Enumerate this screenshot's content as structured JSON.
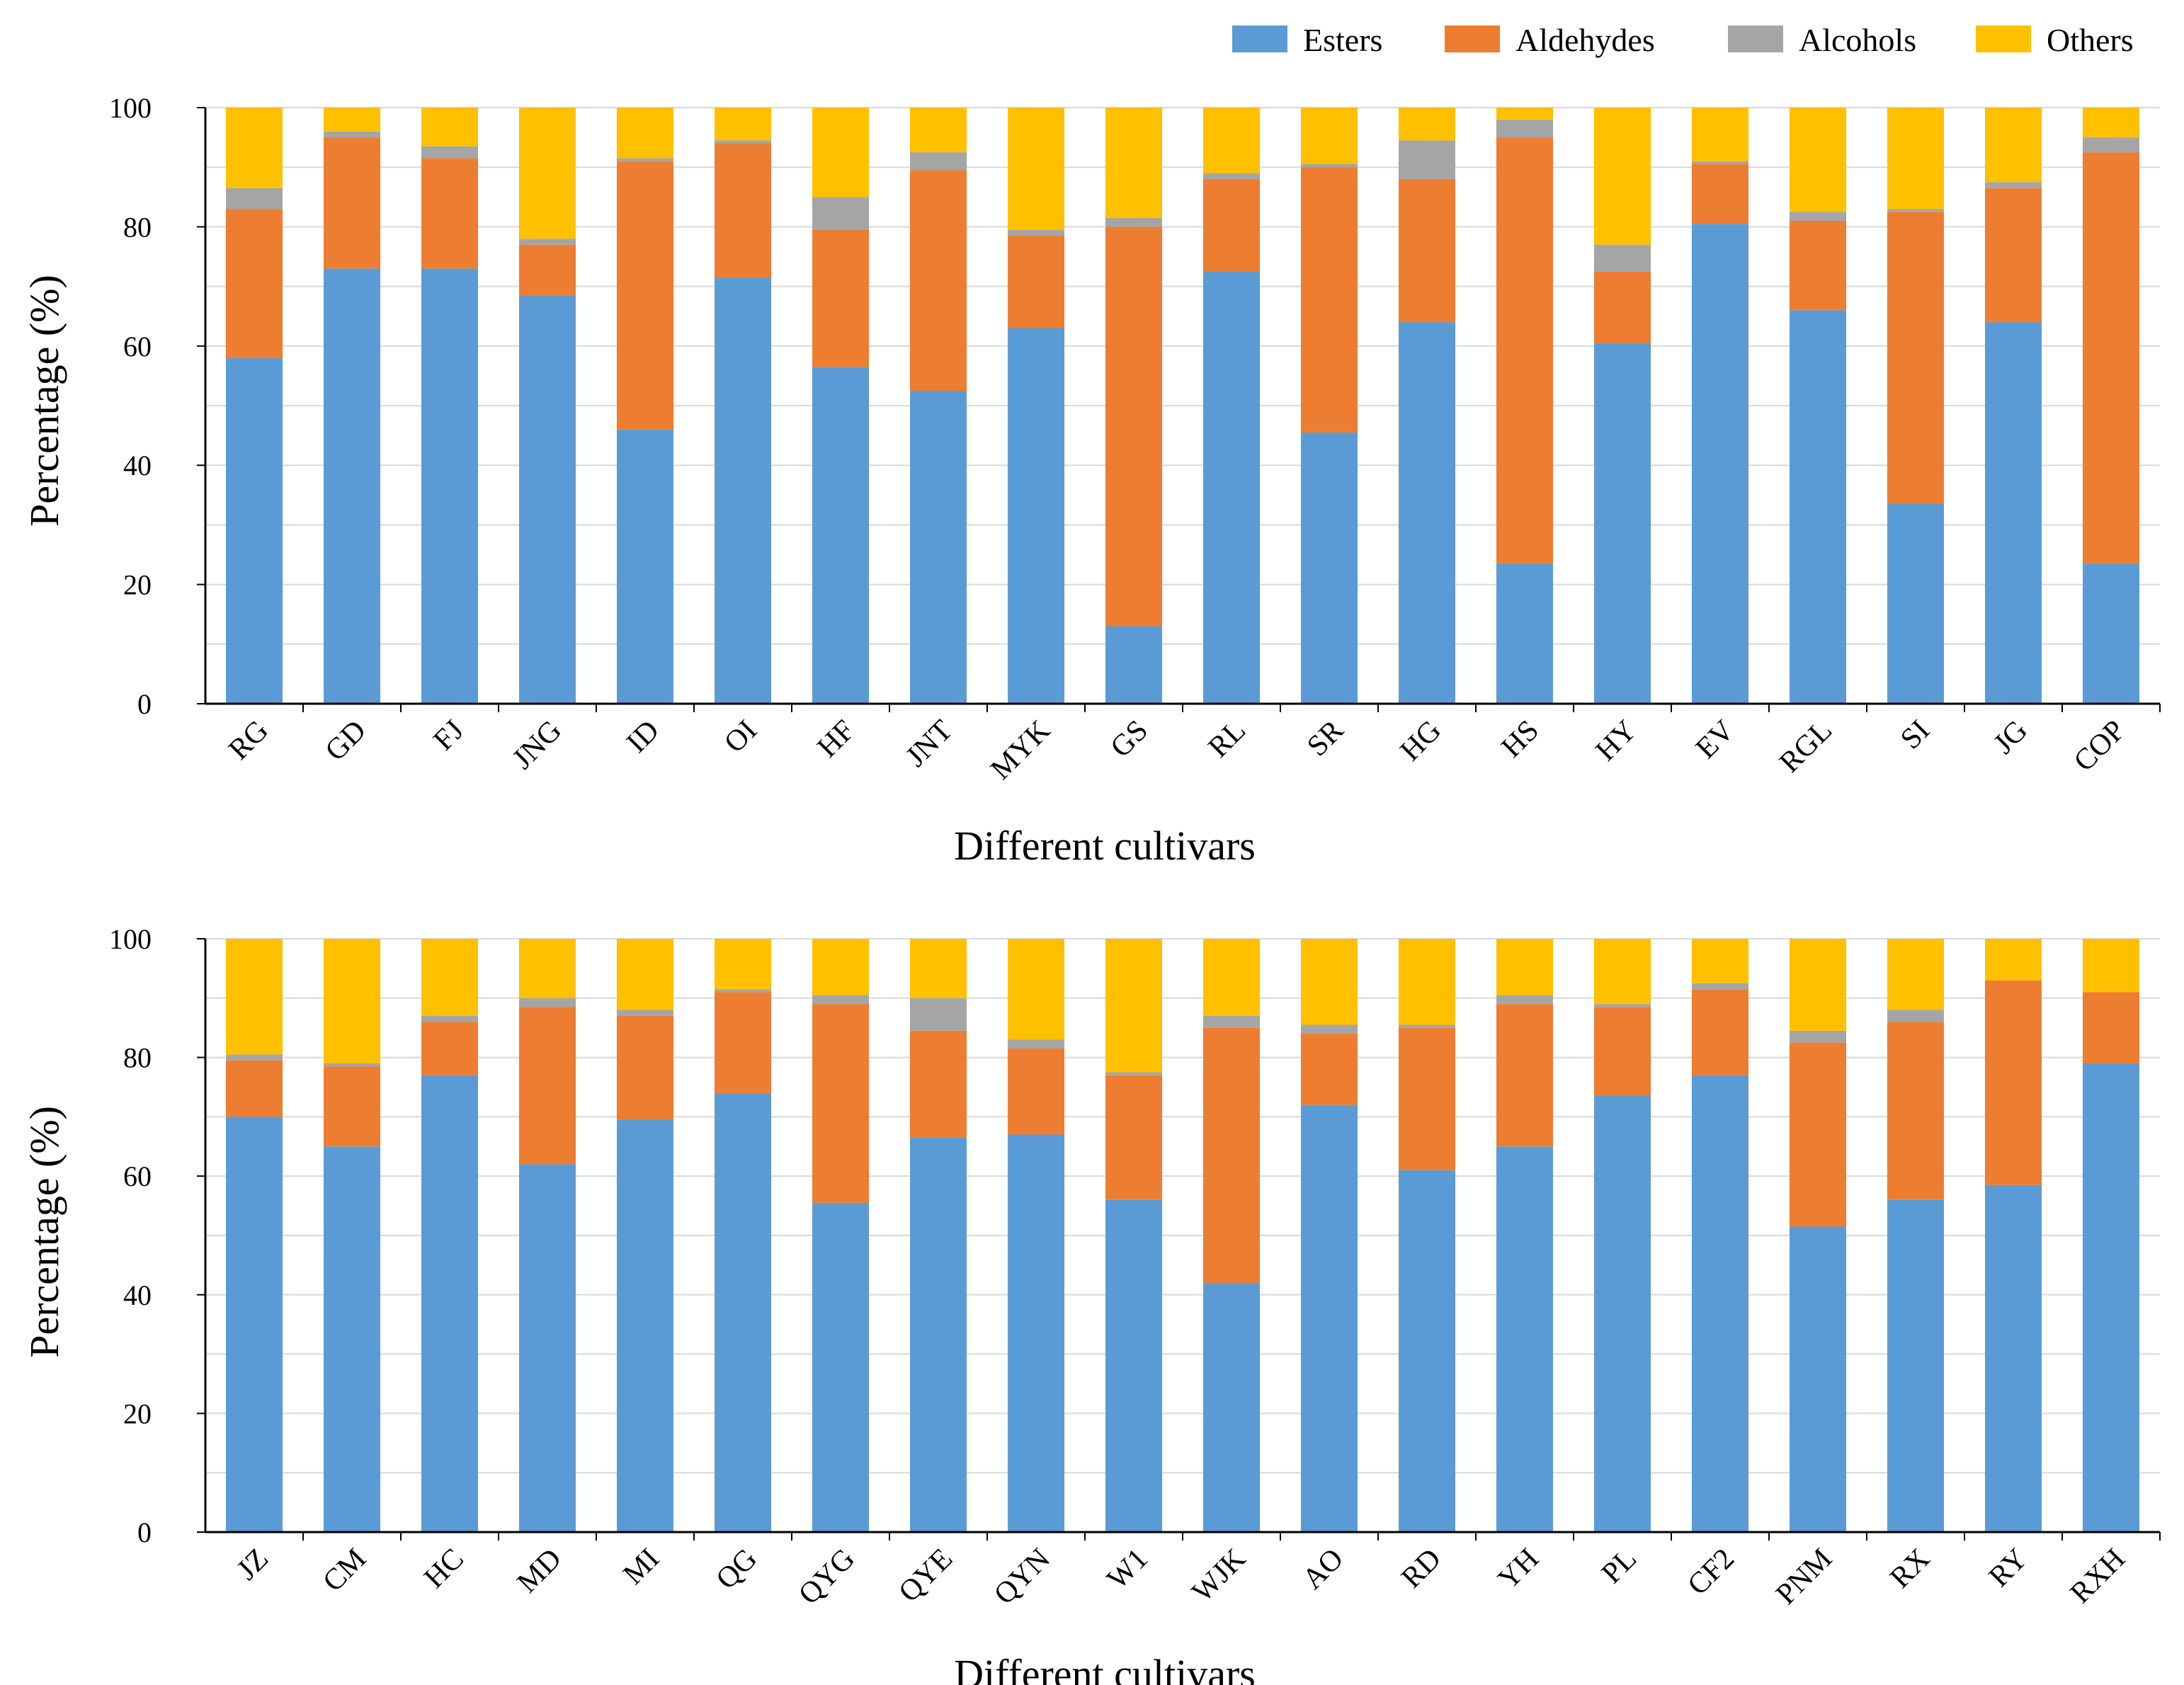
{
  "legend": {
    "items": [
      {
        "name": "Esters",
        "color": "#5b9bd5"
      },
      {
        "name": "Aldehydes",
        "color": "#ed7d31"
      },
      {
        "name": "Alcohols",
        "color": "#a5a5a5"
      },
      {
        "name": "Others",
        "color": "#ffc000"
      }
    ]
  },
  "chart_data": [
    {
      "type": "bar",
      "stacked": true,
      "title": "",
      "xlabel": "Different cultivars",
      "ylabel": "Percentage (%)",
      "ylim": [
        0,
        100
      ],
      "yticks": [
        0,
        20,
        40,
        60,
        80,
        100
      ],
      "categories": [
        "RG",
        "GD",
        "FJ",
        "JNG",
        "ID",
        "OI",
        "HF",
        "JNT",
        "MYK",
        "GS",
        "RL",
        "SR",
        "HG",
        "HS",
        "HY",
        "EV",
        "RGL",
        "SI",
        "JG",
        "COP"
      ],
      "series": [
        {
          "name": "Esters",
          "values": [
            58,
            73,
            73,
            68.5,
            46,
            71.5,
            56.5,
            52.5,
            63,
            13,
            72.5,
            45.5,
            64,
            23.5,
            60.5,
            80.5,
            66,
            33.5,
            64,
            23.5
          ]
        },
        {
          "name": "Aldehydes",
          "values": [
            25,
            22,
            18.5,
            8.5,
            45,
            22.5,
            23,
            37,
            15.5,
            67,
            15.5,
            44.5,
            24,
            71.5,
            12,
            10,
            15,
            49,
            22.5,
            69
          ]
        },
        {
          "name": "Alcohols",
          "values": [
            3.5,
            1,
            2,
            1,
            0.5,
            0.5,
            5.5,
            3,
            1,
            1.5,
            1,
            0.5,
            6.5,
            3,
            4.5,
            0.5,
            1.5,
            0.5,
            1,
            2.5
          ]
        },
        {
          "name": "Others",
          "values": [
            13.5,
            4,
            6.5,
            22,
            8.5,
            5.5,
            15,
            7.5,
            20.5,
            18.5,
            11,
            9.5,
            5.5,
            2,
            23,
            9,
            17.5,
            17,
            12.5,
            5
          ]
        }
      ]
    },
    {
      "type": "bar",
      "stacked": true,
      "title": "",
      "xlabel": "Different cultivars",
      "ylabel": "Percentage (%)",
      "ylim": [
        0,
        100
      ],
      "yticks": [
        0,
        20,
        40,
        60,
        80,
        100
      ],
      "categories": [
        "JZ",
        "CM",
        "HC",
        "MD",
        "MI",
        "QG",
        "QYG",
        "QYE",
        "QYN",
        "W1",
        "WJK",
        "AO",
        "RD",
        "YH",
        "PL",
        "CF2",
        "PNM",
        "RX",
        "RY",
        "RXH"
      ],
      "series": [
        {
          "name": "Esters",
          "values": [
            70,
            65,
            77,
            62,
            69.5,
            74,
            55.5,
            66.5,
            67,
            56,
            42,
            72,
            61,
            65,
            73.5,
            77,
            51.5,
            56,
            58.5,
            79
          ]
        },
        {
          "name": "Aldehydes",
          "values": [
            9.5,
            13.5,
            9,
            26.5,
            17.5,
            17,
            33.5,
            18,
            14.5,
            21,
            43,
            12,
            24,
            24,
            15,
            14.5,
            31,
            30,
            34.5,
            12
          ]
        },
        {
          "name": "Alcohols",
          "values": [
            1,
            0.5,
            1,
            1.5,
            1,
            0.5,
            1.5,
            5.5,
            1.5,
            0.5,
            2,
            1.5,
            0.5,
            1.5,
            0.5,
            1,
            2,
            2,
            0,
            0
          ]
        },
        {
          "name": "Others",
          "values": [
            19.5,
            21,
            13,
            10,
            12,
            8.5,
            9.5,
            10,
            17,
            22.5,
            13,
            14.5,
            14.5,
            9.5,
            11,
            7.5,
            15.5,
            12,
            7,
            9
          ]
        }
      ]
    }
  ]
}
